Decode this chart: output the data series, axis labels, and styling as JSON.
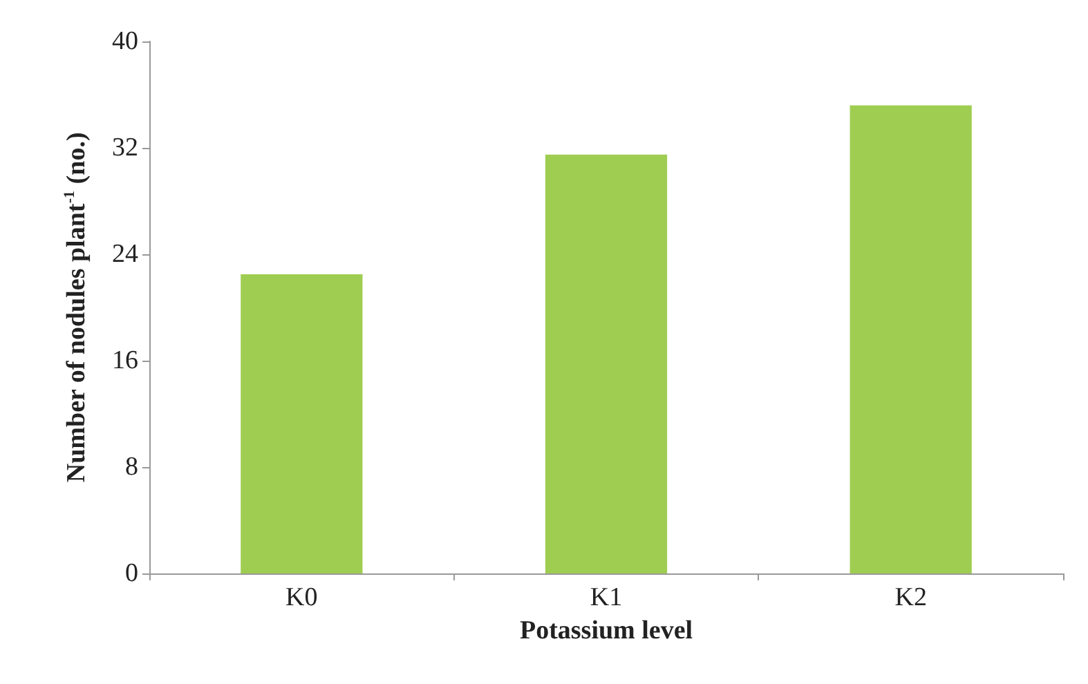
{
  "chart_data": {
    "type": "bar",
    "xlabel": "Potassium level",
    "ylabel": "Number of nodules plant$^{-1}$ (no.)",
    "categories": [
      "K0",
      "K1",
      "K2"
    ],
    "values": [
      22.5,
      31.5,
      35.2
    ],
    "color": "#9fcd52",
    "ylim": [
      0,
      40
    ],
    "yticks": [
      0,
      8,
      16,
      24,
      32,
      40
    ],
    "grid": false
  }
}
